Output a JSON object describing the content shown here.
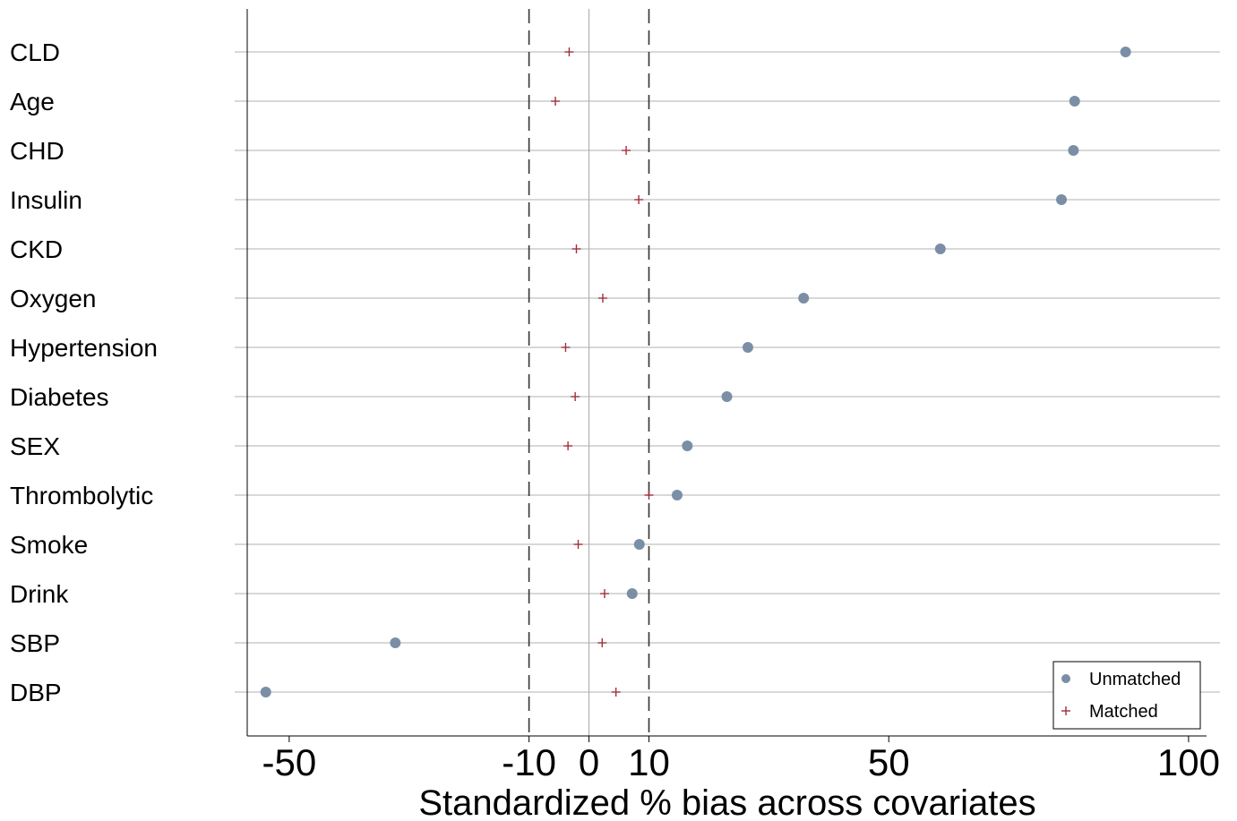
{
  "chart_data": {
    "type": "scatter",
    "title": "",
    "xlabel": "Standardized % bias across covariates",
    "ylabel": "",
    "xlim": [
      -57,
      103
    ],
    "x_ticks": [
      -50,
      -10,
      0,
      10,
      50,
      100
    ],
    "x_tick_labels": [
      "-50",
      "-10",
      "0",
      "10",
      "50",
      "100"
    ],
    "reference_lines": [
      -10,
      10
    ],
    "zero_line": 0,
    "grid": true,
    "legend_position": "bottom-right",
    "categories": [
      "CLD",
      "Age",
      "CHD",
      "Insulin",
      "CKD",
      "Oxygen",
      "Hypertension",
      "Diabetes",
      "SEX",
      "Thrombolytic",
      "Smoke",
      "Drink",
      "SBP",
      "DBP"
    ],
    "series": [
      {
        "name": "Unmatched",
        "marker": "circle",
        "color": "#7a8fa6",
        "values": [
          89.5,
          81.0,
          80.8,
          78.8,
          58.6,
          35.8,
          26.5,
          23.0,
          16.4,
          14.7,
          8.4,
          7.2,
          -32.3,
          -53.9
        ]
      },
      {
        "name": "Matched",
        "marker": "plus",
        "color": "#a0303a",
        "values": [
          -3.3,
          -5.6,
          6.2,
          8.3,
          -2.1,
          2.3,
          -3.9,
          -2.3,
          -3.5,
          10.0,
          -1.8,
          2.6,
          2.2,
          4.5
        ]
      }
    ]
  }
}
